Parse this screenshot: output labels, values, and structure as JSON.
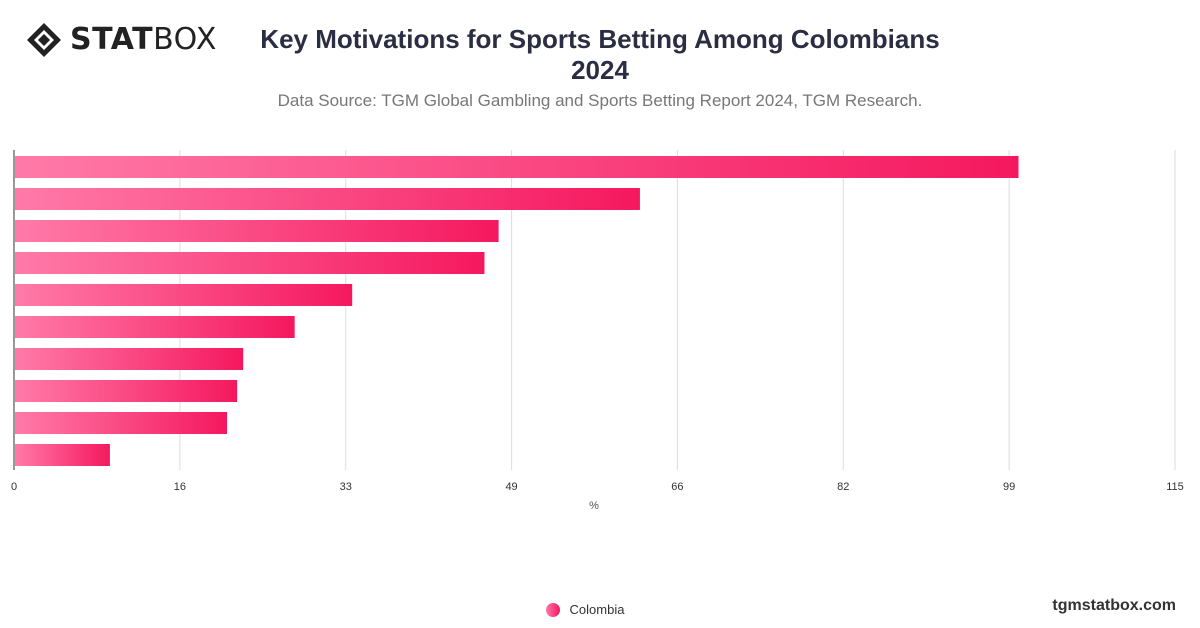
{
  "header": {
    "logo_text_bold": "STAT",
    "logo_text_light": "BOX",
    "title_line1": "Key Motivations for Sports Betting Among Colombians",
    "title_line2": "2024",
    "subtitle": "Data Source: TGM Global Gambling and Sports Betting Report 2024, TGM Research."
  },
  "legend": {
    "label": "Colombia"
  },
  "watermark": "tgmstatbox.com",
  "colors": {
    "bar_start": "#ff7aa8",
    "bar_end": "#f5185f",
    "grid": "#dddddd"
  },
  "chart_data": {
    "type": "bar",
    "orientation": "horizontal",
    "title": "Key Motivations for Sports Betting Among Colombians 2024",
    "xlabel": "%",
    "ylabel": "",
    "xlim": [
      0,
      115
    ],
    "x_ticks": [
      "0",
      "16",
      "33",
      "49",
      "66",
      "82",
      "99",
      "115"
    ],
    "series": [
      {
        "name": "Colombia",
        "values": [
          99.5,
          62,
          48,
          46.6,
          33.5,
          27.8,
          22.7,
          22.1,
          21.1,
          9.5
        ]
      }
    ],
    "grid": true,
    "legend_position": "bottom"
  }
}
